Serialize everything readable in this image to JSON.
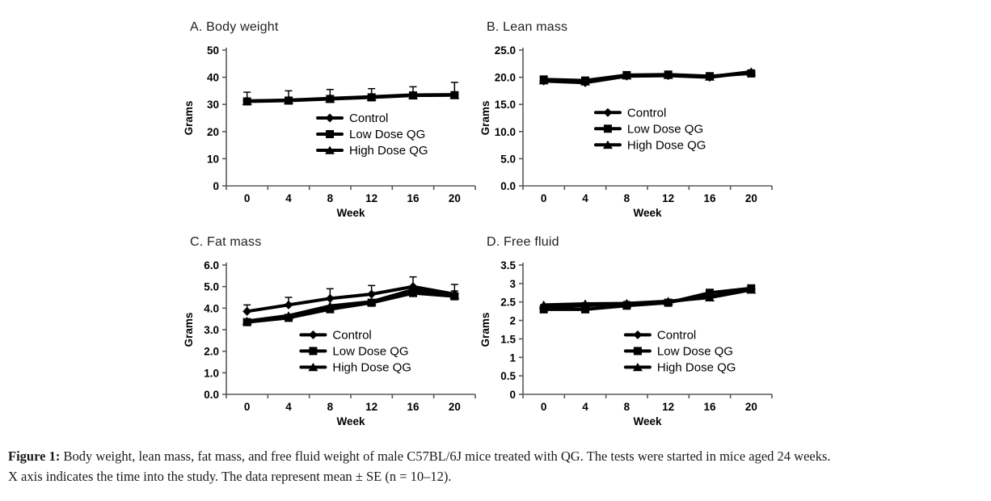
{
  "figure": {
    "caption_prefix": "Figure 1:",
    "caption_line1": " Body weight, lean mass, fat mass, and free fluid weight of male C57BL/6J mice treated with QG. The tests were started in mice aged 24 weeks.",
    "caption_line2": "X axis indicates the time into the study. The data represent mean ± SE (n = 10–12)."
  },
  "colors": {
    "series_line": "#000000",
    "axis": "#595959",
    "tick_text": "#000000",
    "background": "#ffffff"
  },
  "chart_data": [
    {
      "id": "body-weight",
      "type": "line",
      "title": "A. Body weight",
      "xlabel": "Week",
      "ylabel": "Grams",
      "categories": [
        0,
        4,
        8,
        12,
        16,
        20
      ],
      "ylim": [
        0,
        50
      ],
      "yticks": [
        "0",
        "10",
        "20",
        "30",
        "40",
        "50"
      ],
      "grid": false,
      "legend_position": {
        "x_frac": 0.367,
        "y_frac": 0.5
      },
      "series": [
        {
          "name": "Control",
          "marker": "diamond",
          "values": [
            31.3,
            31.6,
            32.2,
            32.8,
            33.5,
            33.6
          ],
          "se_upper": [
            3.2,
            3.4,
            3.3,
            3.0,
            3.0,
            4.5
          ]
        },
        {
          "name": "Low Dose QG",
          "marker": "square",
          "values": [
            31.1,
            31.4,
            32.0,
            32.6,
            33.3,
            33.4
          ]
        },
        {
          "name": "High Dose QG",
          "marker": "triangle",
          "values": [
            31.2,
            31.5,
            32.1,
            32.7,
            33.4,
            33.5
          ]
        }
      ]
    },
    {
      "id": "lean-mass",
      "type": "line",
      "title": "B. Lean mass",
      "xlabel": "Week",
      "ylabel": "Grams",
      "categories": [
        0,
        4,
        8,
        12,
        16,
        20
      ],
      "ylim": [
        0,
        25
      ],
      "yticks": [
        "0.0",
        "5.0",
        "10.0",
        "15.0",
        "20.0",
        "25.0"
      ],
      "grid": false,
      "legend_position": {
        "x_frac": 0.292,
        "y_frac": 0.46
      },
      "series": [
        {
          "name": "Control",
          "marker": "diamond",
          "values": [
            19.3,
            19.0,
            20.2,
            20.3,
            20.0,
            20.9
          ]
        },
        {
          "name": "Low Dose QG",
          "marker": "square",
          "values": [
            19.6,
            19.4,
            20.4,
            20.5,
            20.2,
            20.7
          ]
        },
        {
          "name": "High Dose QG",
          "marker": "triangle",
          "values": [
            19.4,
            19.2,
            20.3,
            20.4,
            20.1,
            21.0
          ],
          "se_upper": [
            0,
            0,
            0,
            0,
            0,
            0.3
          ]
        }
      ]
    },
    {
      "id": "fat-mass",
      "type": "line",
      "title": "C. Fat mass",
      "xlabel": "Week",
      "ylabel": "Grams",
      "categories": [
        0,
        4,
        8,
        12,
        16,
        20
      ],
      "ylim": [
        0,
        6
      ],
      "yticks": [
        "0.0",
        "1.0",
        "2.0",
        "3.0",
        "4.0",
        "5.0",
        "6.0"
      ],
      "grid": false,
      "legend_position": {
        "x_frac": 0.3,
        "y_frac": 0.54
      },
      "series": [
        {
          "name": "Control",
          "marker": "diamond",
          "values": [
            3.85,
            4.15,
            4.45,
            4.65,
            5.0,
            4.65
          ],
          "se_upper": [
            0.3,
            0.35,
            0.45,
            0.4,
            0.45,
            0.45
          ]
        },
        {
          "name": "Low Dose QG",
          "marker": "square",
          "values": [
            3.35,
            3.55,
            3.95,
            4.25,
            4.7,
            4.55
          ],
          "se_upper": [
            0.1,
            0.12,
            0.15,
            0.15,
            0.2,
            0.25
          ]
        },
        {
          "name": "High Dose QG",
          "marker": "triangle",
          "values": [
            3.4,
            3.65,
            4.1,
            4.3,
            4.85,
            4.6
          ]
        }
      ]
    },
    {
      "id": "free-fluid",
      "type": "line",
      "title": "D. Free fluid",
      "xlabel": "Week",
      "ylabel": "Grams",
      "categories": [
        0,
        4,
        8,
        12,
        16,
        20
      ],
      "ylim": [
        0,
        3.5
      ],
      "yticks": [
        "0",
        "0.5",
        "1",
        "1.5",
        "2",
        "2.5",
        "3",
        "3.5"
      ],
      "grid": false,
      "legend_position": {
        "x_frac": 0.412,
        "y_frac": 0.54
      },
      "series": [
        {
          "name": "Control",
          "marker": "diamond",
          "values": [
            2.35,
            2.4,
            2.45,
            2.5,
            2.65,
            2.85
          ],
          "se_upper": [
            0.08,
            0.08,
            0.06,
            0.06,
            0.08,
            0.08
          ]
        },
        {
          "name": "Low Dose QG",
          "marker": "square",
          "values": [
            2.3,
            2.3,
            2.4,
            2.48,
            2.75,
            2.87
          ]
        },
        {
          "name": "High Dose QG",
          "marker": "triangle",
          "values": [
            2.42,
            2.45,
            2.46,
            2.52,
            2.62,
            2.83
          ]
        }
      ]
    }
  ]
}
